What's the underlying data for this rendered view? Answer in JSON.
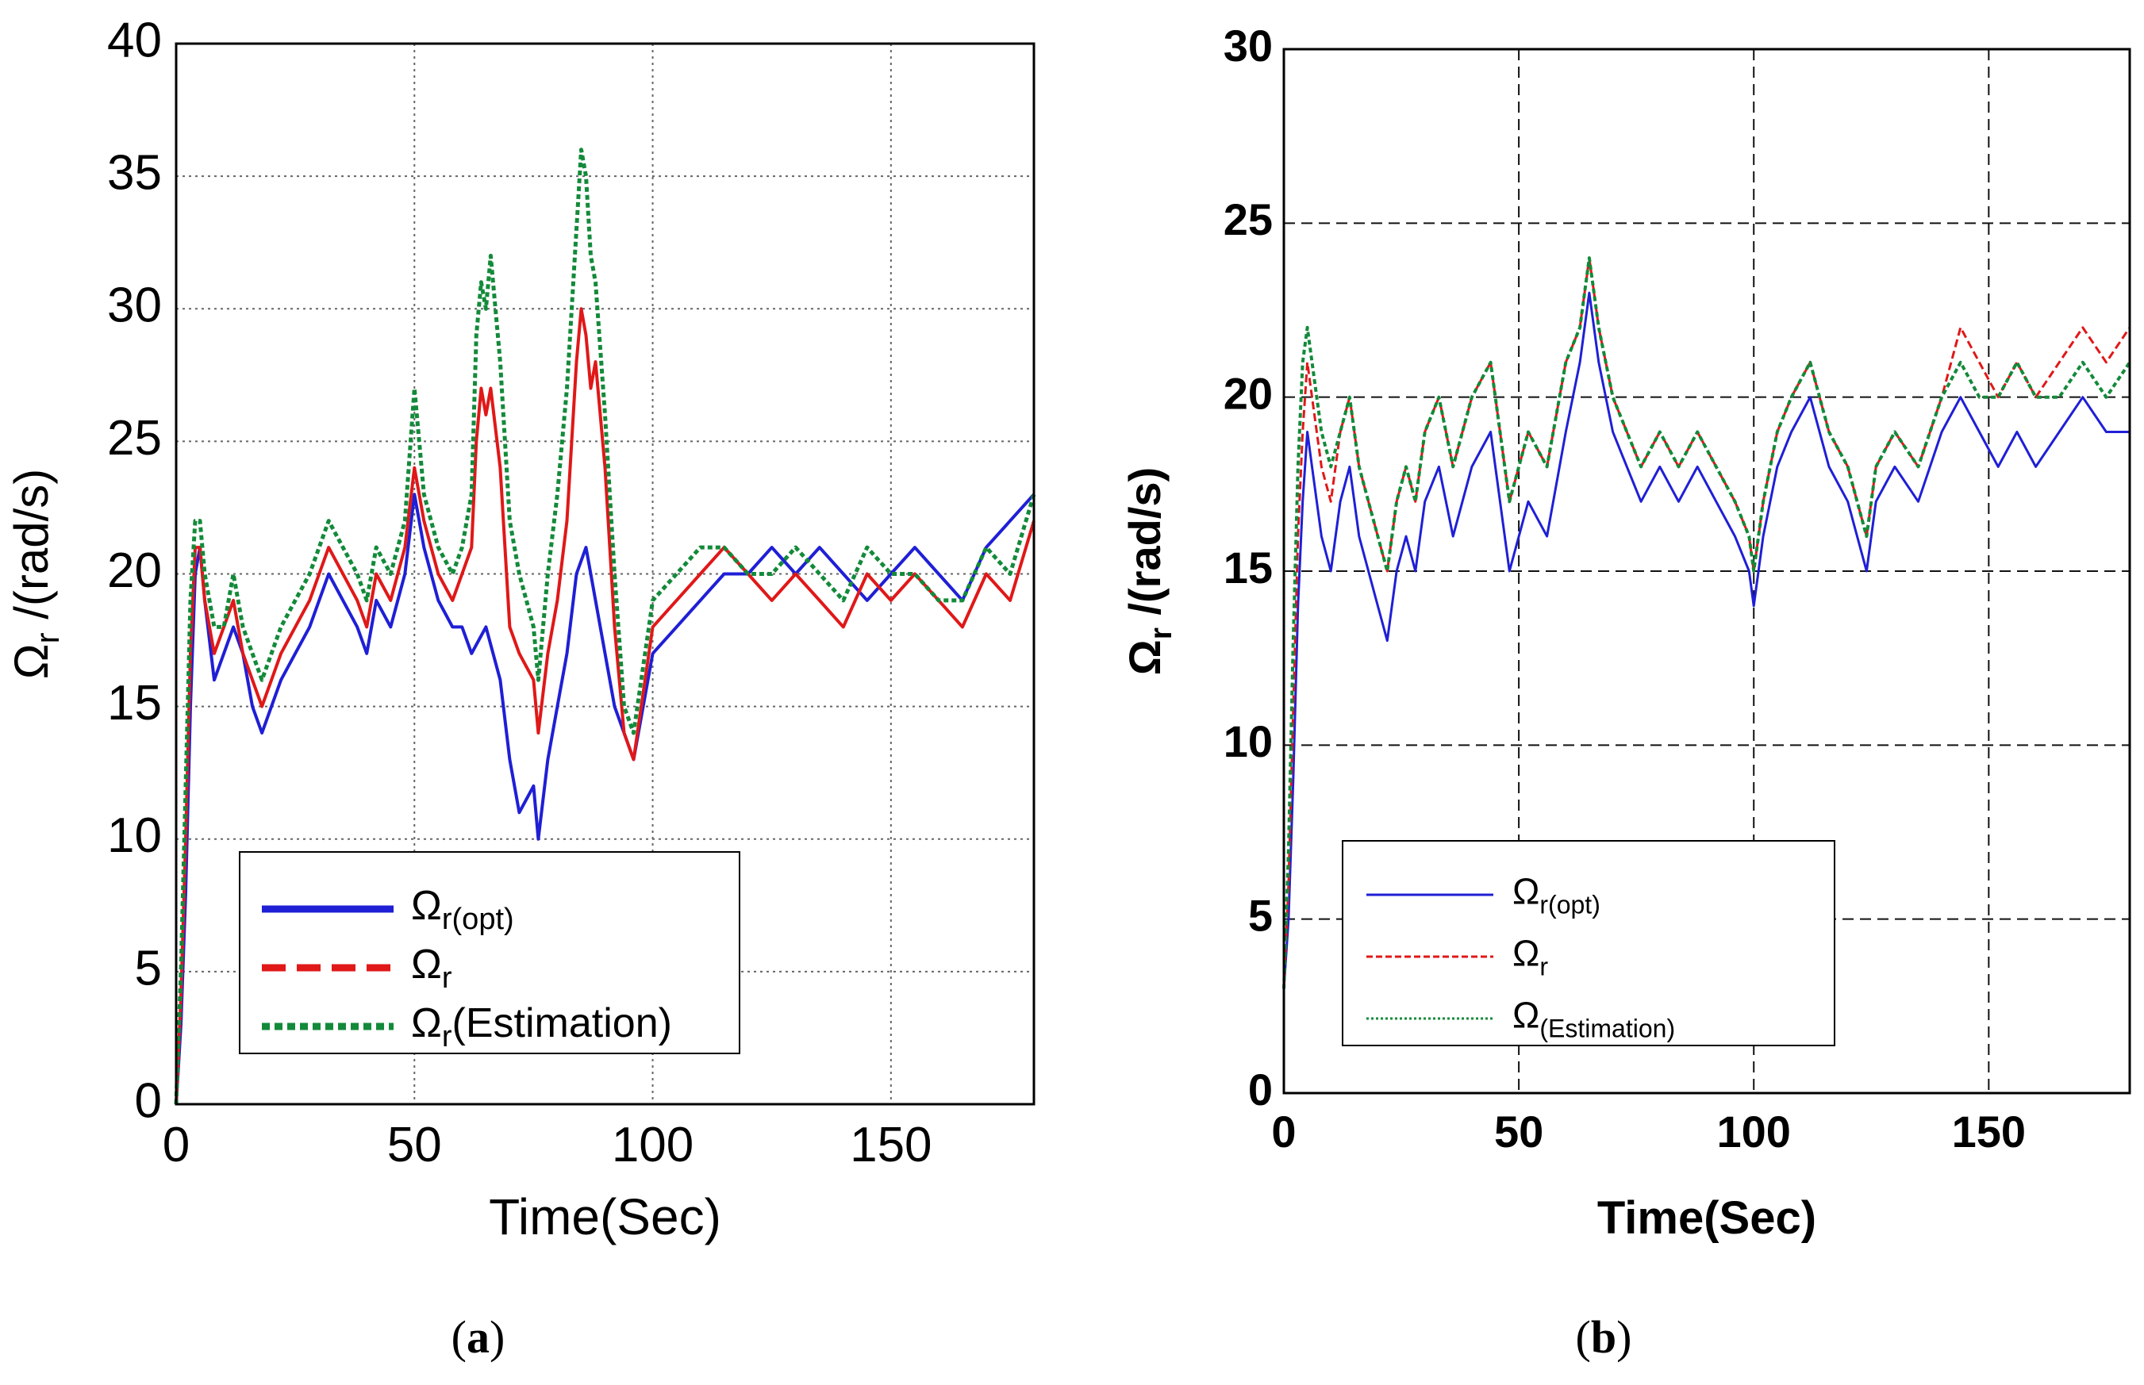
{
  "chart_data": [
    {
      "type": "line",
      "panel_label": "(a)",
      "xlabel": "Time(Sec)",
      "ylabel": "Ω_r /(rad/s)",
      "xlim": [
        0,
        180
      ],
      "ylim": [
        0,
        40
      ],
      "xticks": [
        0,
        50,
        100,
        150
      ],
      "yticks": [
        0,
        5,
        10,
        15,
        20,
        25,
        30,
        35,
        40
      ],
      "grid": true,
      "legend_position": "bottom-left",
      "legend": [
        {
          "base": "Ω",
          "sub": "r(opt)",
          "tail": "",
          "style": "solid"
        },
        {
          "base": "Ω",
          "sub": "r",
          "tail": "",
          "style": "dashed"
        },
        {
          "base": "Ω",
          "sub": "r",
          "tail": "(Estimation)",
          "style": "dotted"
        }
      ],
      "series": [
        {
          "name": "Ω r(opt)",
          "color": "#1f1fd6",
          "x": [
            0,
            1,
            2,
            3,
            4,
            5,
            6,
            8,
            10,
            12,
            14,
            16,
            18,
            20,
            22,
            25,
            28,
            30,
            32,
            35,
            38,
            40,
            42,
            45,
            48,
            50,
            52,
            55,
            58,
            60,
            62,
            65,
            68,
            70,
            72,
            75,
            76,
            78,
            80,
            82,
            84,
            86,
            88,
            90,
            92,
            94,
            96,
            100,
            105,
            110,
            115,
            120,
            125,
            130,
            135,
            140,
            145,
            150,
            155,
            160,
            165,
            170,
            175,
            180
          ],
          "y": [
            0,
            3,
            8,
            15,
            20,
            21,
            19,
            16,
            17,
            18,
            17,
            15,
            14,
            15,
            16,
            17,
            18,
            19,
            20,
            19,
            18,
            17,
            19,
            18,
            20,
            23,
            21,
            19,
            18,
            18,
            17,
            18,
            16,
            13,
            11,
            12,
            10,
            13,
            15,
            17,
            20,
            21,
            19,
            17,
            15,
            14,
            13,
            17,
            18,
            19,
            20,
            20,
            21,
            20,
            21,
            20,
            19,
            20,
            21,
            20,
            19,
            21,
            22,
            23
          ]
        },
        {
          "name": "Ω r",
          "color": "#e01818",
          "x": [
            0,
            1,
            2,
            3,
            4,
            5,
            6,
            8,
            10,
            12,
            14,
            16,
            18,
            20,
            22,
            25,
            28,
            30,
            32,
            35,
            38,
            40,
            42,
            45,
            48,
            50,
            52,
            55,
            58,
            60,
            62,
            63,
            64,
            65,
            66,
            68,
            70,
            72,
            75,
            76,
            78,
            80,
            82,
            84,
            85,
            86,
            87,
            88,
            90,
            92,
            94,
            96,
            100,
            105,
            110,
            115,
            120,
            125,
            130,
            135,
            140,
            145,
            150,
            155,
            160,
            165,
            170,
            175,
            180
          ],
          "y": [
            0,
            4,
            10,
            17,
            21,
            21,
            19,
            17,
            18,
            19,
            17,
            16,
            15,
            16,
            17,
            18,
            19,
            20,
            21,
            20,
            19,
            18,
            20,
            19,
            21,
            24,
            22,
            20,
            19,
            20,
            21,
            25,
            27,
            26,
            27,
            24,
            18,
            17,
            16,
            14,
            17,
            19,
            22,
            28,
            30,
            29,
            27,
            28,
            24,
            18,
            14,
            13,
            18,
            19,
            20,
            21,
            20,
            19,
            20,
            19,
            18,
            20,
            19,
            20,
            19,
            18,
            20,
            19,
            22
          ]
        },
        {
          "name": "Ω r(Estimation)",
          "color": "#138a3a",
          "x": [
            0,
            1,
            2,
            3,
            4,
            5,
            6,
            8,
            10,
            12,
            14,
            16,
            18,
            20,
            22,
            25,
            28,
            30,
            32,
            35,
            38,
            40,
            42,
            45,
            48,
            50,
            52,
            55,
            58,
            60,
            62,
            63,
            64,
            65,
            66,
            68,
            70,
            72,
            75,
            76,
            78,
            80,
            82,
            84,
            85,
            86,
            87,
            88,
            90,
            92,
            94,
            96,
            100,
            105,
            110,
            115,
            120,
            125,
            130,
            135,
            140,
            145,
            150,
            155,
            160,
            165,
            170,
            175,
            180
          ],
          "y": [
            0,
            5,
            12,
            19,
            22,
            22,
            20,
            18,
            18,
            20,
            18,
            17,
            16,
            17,
            18,
            19,
            20,
            21,
            22,
            21,
            20,
            19,
            21,
            20,
            22,
            27,
            23,
            21,
            20,
            21,
            23,
            29,
            31,
            30,
            32,
            28,
            22,
            20,
            18,
            16,
            20,
            23,
            27,
            33,
            36,
            35,
            32,
            31,
            26,
            20,
            15,
            14,
            19,
            20,
            21,
            21,
            20,
            20,
            21,
            20,
            19,
            21,
            20,
            20,
            19,
            19,
            21,
            20,
            23
          ]
        }
      ]
    },
    {
      "type": "line",
      "panel_label": "(b)",
      "xlabel": "Time(Sec)",
      "ylabel": "Ω_r /(rad/s)",
      "xlim": [
        0,
        180
      ],
      "ylim": [
        0,
        30
      ],
      "xticks": [
        0,
        50,
        100,
        150
      ],
      "yticks": [
        0,
        5,
        10,
        15,
        20,
        25,
        30
      ],
      "grid": true,
      "legend_position": "bottom-left",
      "legend": [
        {
          "base": "Ω",
          "sub": "r(opt)",
          "tail": "",
          "style": "solid"
        },
        {
          "base": "Ω",
          "sub": "r",
          "tail": "",
          "style": "dashed"
        },
        {
          "base": "Ω",
          "sub": "(Estimation)",
          "tail": "",
          "style": "dotted"
        }
      ],
      "series": [
        {
          "name": "Ω r(opt)",
          "color": "#1f1fd6",
          "x": [
            0,
            1,
            2,
            3,
            4,
            5,
            6,
            8,
            10,
            12,
            14,
            16,
            18,
            20,
            22,
            24,
            26,
            28,
            30,
            33,
            36,
            40,
            44,
            48,
            52,
            56,
            60,
            63,
            65,
            67,
            70,
            73,
            76,
            80,
            84,
            88,
            92,
            96,
            99,
            100,
            102,
            105,
            108,
            112,
            116,
            120,
            122,
            124,
            126,
            130,
            135,
            140,
            144,
            148,
            152,
            156,
            160,
            165,
            170,
            175,
            180
          ],
          "y": [
            3,
            5,
            9,
            14,
            17,
            19,
            18,
            16,
            15,
            17,
            18,
            16,
            15,
            14,
            13,
            15,
            16,
            15,
            17,
            18,
            16,
            18,
            19,
            15,
            17,
            16,
            19,
            21,
            23,
            21,
            19,
            18,
            17,
            18,
            17,
            18,
            17,
            16,
            15,
            14,
            16,
            18,
            19,
            20,
            18,
            17,
            16,
            15,
            17,
            18,
            17,
            19,
            20,
            19,
            18,
            19,
            18,
            19,
            20,
            19,
            19
          ]
        },
        {
          "name": "Ω r",
          "color": "#e01818",
          "x": [
            0,
            1,
            2,
            3,
            4,
            5,
            6,
            8,
            10,
            12,
            14,
            16,
            18,
            20,
            22,
            24,
            26,
            28,
            30,
            33,
            36,
            40,
            44,
            48,
            52,
            56,
            60,
            63,
            65,
            67,
            70,
            73,
            76,
            80,
            84,
            88,
            92,
            96,
            99,
            100,
            102,
            105,
            108,
            112,
            116,
            120,
            122,
            124,
            126,
            130,
            135,
            140,
            144,
            148,
            152,
            156,
            160,
            165,
            170,
            175,
            180
          ],
          "y": [
            3,
            6,
            11,
            16,
            19,
            21,
            20,
            18,
            17,
            19,
            20,
            18,
            17,
            16,
            15,
            17,
            18,
            17,
            19,
            20,
            18,
            20,
            21,
            17,
            19,
            18,
            21,
            22,
            24,
            22,
            20,
            19,
            18,
            19,
            18,
            19,
            18,
            17,
            16,
            15,
            17,
            19,
            20,
            21,
            19,
            18,
            17,
            16,
            18,
            19,
            18,
            20,
            22,
            21,
            20,
            21,
            20,
            21,
            22,
            21,
            22
          ]
        },
        {
          "name": "Ω (Estimation)",
          "color": "#138a3a",
          "x": [
            0,
            1,
            2,
            3,
            4,
            5,
            6,
            8,
            10,
            12,
            14,
            16,
            18,
            20,
            22,
            24,
            26,
            28,
            30,
            33,
            36,
            40,
            44,
            48,
            52,
            56,
            60,
            63,
            65,
            67,
            70,
            73,
            76,
            80,
            84,
            88,
            92,
            96,
            99,
            100,
            102,
            105,
            108,
            112,
            116,
            120,
            122,
            124,
            126,
            130,
            135,
            140,
            144,
            148,
            152,
            156,
            160,
            165,
            170,
            175,
            180
          ],
          "y": [
            3,
            7,
            13,
            18,
            21,
            22,
            21,
            19,
            18,
            19,
            20,
            18,
            17,
            16,
            15,
            17,
            18,
            17,
            19,
            20,
            18,
            20,
            21,
            17,
            19,
            18,
            21,
            22,
            24,
            22,
            20,
            19,
            18,
            19,
            18,
            19,
            18,
            17,
            16,
            15,
            17,
            19,
            20,
            21,
            19,
            18,
            17,
            16,
            18,
            19,
            18,
            20,
            21,
            20,
            20,
            21,
            20,
            20,
            21,
            20,
            21
          ]
        }
      ]
    }
  ]
}
